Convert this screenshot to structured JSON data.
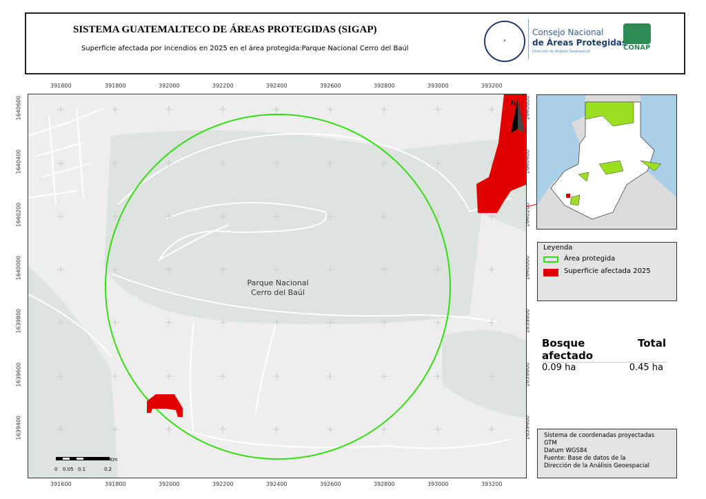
{
  "header": {
    "title": "SISTEMA GUATEMALTECO DE ÁREAS PROTEGIDAS  (SIGAP)",
    "subtitle": "Superficie afectada por incendios en 2025 en el área protegida:Parque Nacional Cerro del Baúl",
    "seal_text": "GOBIERNO DE LA REPÚBLICA · GUATEMALA",
    "conap_line1": "Consejo Nacional",
    "conap_line2": "de Áreas Protegidas",
    "conap_line3": "Dirección de Análisis Geoespacial",
    "conap_logo": "CONAP"
  },
  "map": {
    "x_ticks": [
      "391600",
      "391800",
      "392000",
      "392200",
      "392400",
      "392600",
      "392800",
      "393000",
      "393200"
    ],
    "y_ticks": [
      "1640600",
      "1640400",
      "1640200",
      "1640000",
      "1639800",
      "1639600",
      "1639400"
    ],
    "area_label_line1": "Parque Nacional",
    "area_label_line2": "Cerro del Baúl",
    "north_label": "N",
    "scale": {
      "labels": [
        "0",
        "0.05",
        "0.1",
        "0.2"
      ],
      "unit": "Km"
    },
    "colors": {
      "protected_area": "#33dd11",
      "affected": "#e00000",
      "background": "#eeeeee"
    }
  },
  "legend": {
    "title": "Leyenda",
    "items": [
      {
        "label": "Área protegida",
        "color": "#33dd11"
      },
      {
        "label": "Superficie afectada 2025",
        "color": "#e00000"
      }
    ]
  },
  "stats": {
    "headers": [
      "Bosque afectado",
      "Total"
    ],
    "values": [
      "0.09 ha",
      "0.45 ha"
    ]
  },
  "info": [
    "Sistema de coordenadas proyectadas",
    "GTM",
    "Datum WGS84",
    "Fuente: Base de datos de la",
    "Dirección de la Análisis Geoespacial"
  ]
}
